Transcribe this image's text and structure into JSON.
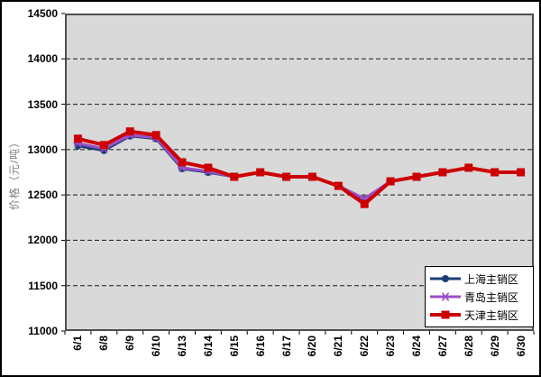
{
  "chart_data": {
    "type": "line",
    "title": "",
    "xlabel": "",
    "ylabel": "价格（元/吨）",
    "ylim": [
      11000,
      14500
    ],
    "ytick_step": 500,
    "yticks": [
      14500,
      14000,
      13500,
      13000,
      12500,
      12000,
      11500,
      11000
    ],
    "grid": "horizontal-dashed",
    "plot_background": "#D9D9D9",
    "legend_position": "bottom-right",
    "categories": [
      "6/1",
      "6/8",
      "6/9",
      "6/10",
      "6/13",
      "6/14",
      "6/15",
      "6/16",
      "6/17",
      "6/20",
      "6/21",
      "6/22",
      "6/23",
      "6/24",
      "6/27",
      "6/28",
      "6/29",
      "6/30"
    ],
    "series": [
      {
        "id": "shanghai",
        "name": "上海主销区",
        "color": "#1C3E75",
        "marker": "circle",
        "line_width": 3,
        "values": [
          13040,
          12990,
          13150,
          13120,
          12790,
          12750,
          12700,
          12750,
          12700,
          12700,
          12600,
          12450,
          12650,
          12700,
          12750,
          12800,
          12750,
          12750
        ]
      },
      {
        "id": "qingdao",
        "name": "青岛主销区",
        "color": "#9B4FC8",
        "marker": "star",
        "line_width": 3,
        "values": [
          13070,
          13010,
          13160,
          13130,
          12800,
          12760,
          12700,
          12750,
          12700,
          12700,
          12600,
          12460,
          12650,
          12700,
          12750,
          12800,
          12750,
          12750
        ]
      },
      {
        "id": "tianjin",
        "name": "天津主销区",
        "color": "#CC0000",
        "marker": "square",
        "line_width": 4,
        "values": [
          13120,
          13050,
          13200,
          13160,
          12860,
          12800,
          12700,
          12750,
          12700,
          12700,
          12600,
          12400,
          12650,
          12700,
          12750,
          12800,
          12750,
          12750
        ]
      }
    ]
  }
}
